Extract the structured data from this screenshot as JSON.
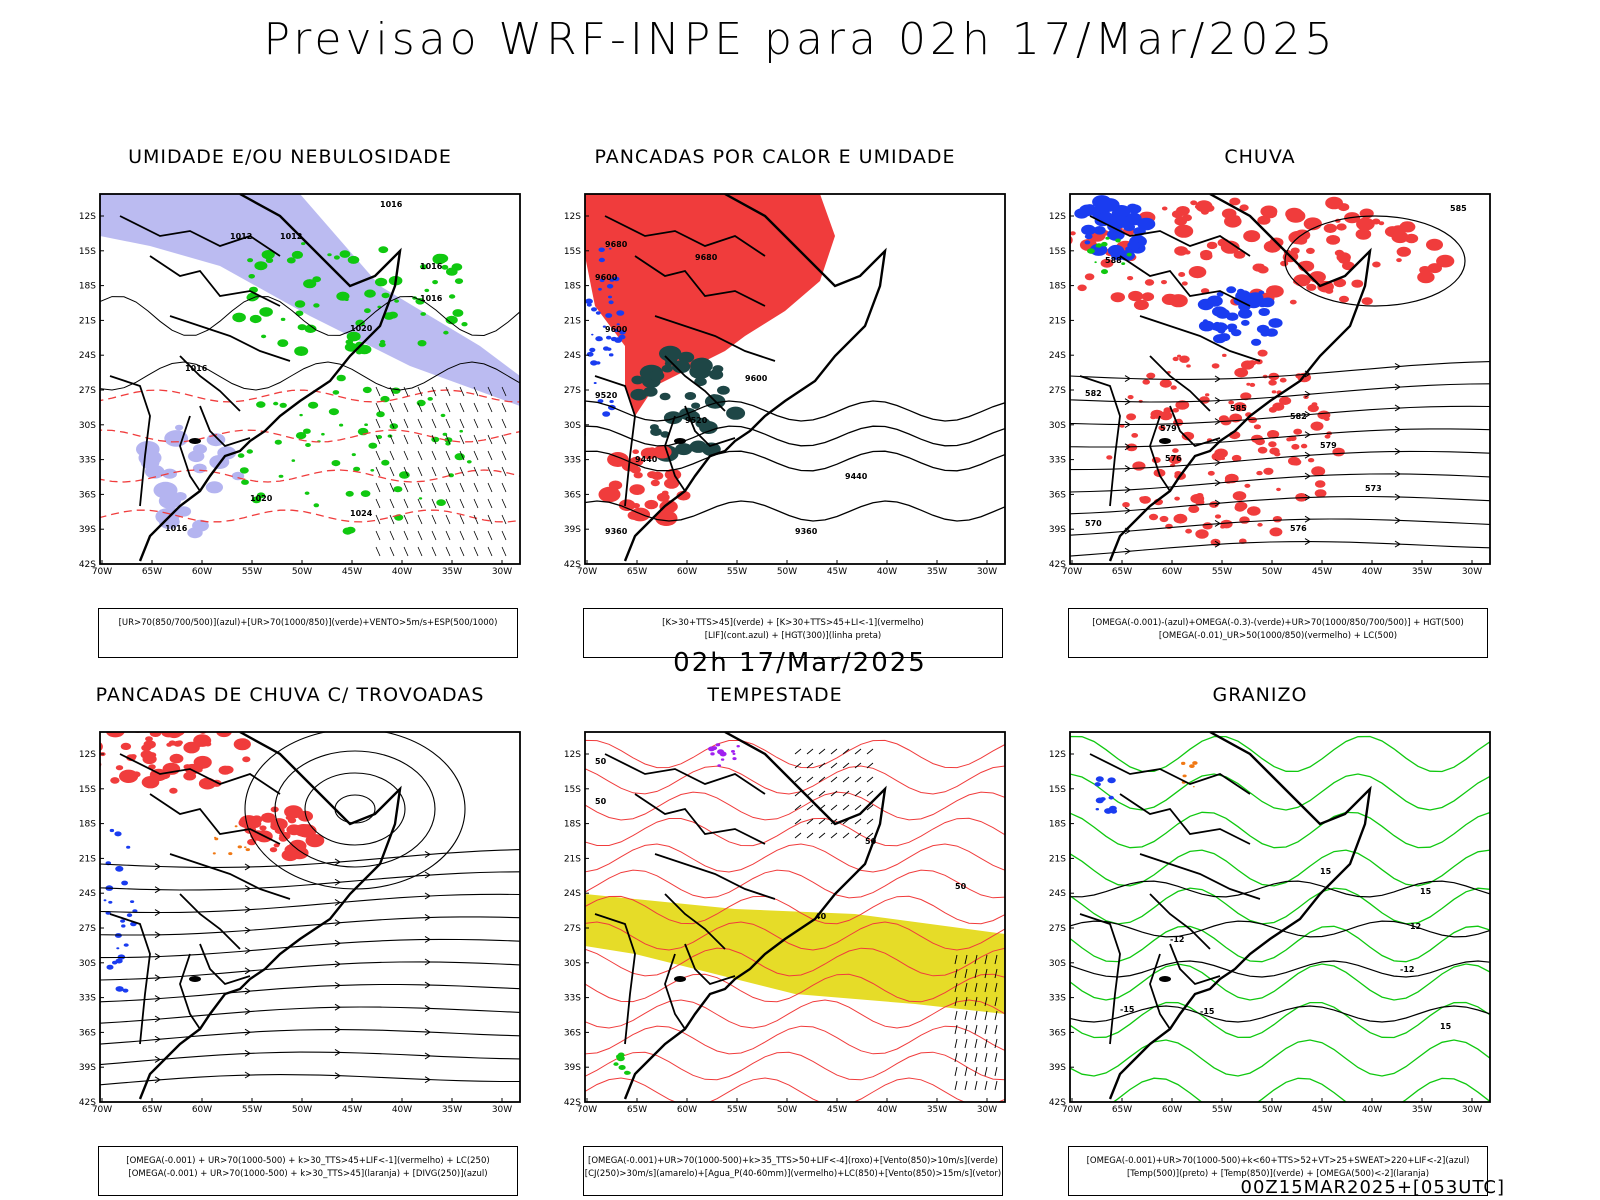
{
  "title": "Previsao WRF-INPE  para 02h 17/Mar/2025",
  "mid_title": "02h 17/Mar/2025",
  "footer": "00Z15MAR2025+[053UTC]",
  "axes": {
    "lat_labels": [
      "12S",
      "15S",
      "18S",
      "21S",
      "24S",
      "27S",
      "30S",
      "33S",
      "36S",
      "39S",
      "42S"
    ],
    "lon_labels": [
      "70W",
      "65W",
      "60W",
      "55W",
      "50W",
      "45W",
      "40W",
      "35W",
      "30W"
    ]
  },
  "colors": {
    "red": "#f03c3c",
    "green": "#10c810",
    "blue": "#1a3cf0",
    "lavender": "#b4b4f0",
    "yellow": "#e6dc28",
    "darkteal": "#1e4646",
    "orange": "#f07814",
    "purple": "#a020f0"
  },
  "panels": [
    {
      "title": "UMIDADE E/OU NEBULOSIDADE",
      "legend": [
        "[UR>70(850/700/500)](azul)+[UR>70(1000/850)](verde)+VENTO>5m/s+ESP(500/1000)"
      ],
      "contour_labels": [
        "1016",
        "1012",
        "1012",
        "1016",
        "1016",
        "1020",
        "1016",
        "1020",
        "1024",
        "1016"
      ]
    },
    {
      "title": "PANCADAS POR CALOR E UMIDADE",
      "legend": [
        "[K>30+TTS>45](verde) + [K>30+TTS>45+LI<-1](vermelho)",
        "[LIF](cont.azul) + [HGT(300)](linha preta)"
      ],
      "contour_labels": [
        "9680",
        "9680",
        "9600",
        "9600",
        "9520",
        "9440",
        "9360",
        "9600",
        "9520",
        "9440",
        "9360"
      ]
    },
    {
      "title": "CHUVA",
      "legend": [
        "[OMEGA(-0.001)-(azul)+OMEGA(-0.3)-(verde)+UR>70(1000/850/700/500)] + HGT(500)",
        "[OMEGA(-0.01)_UR>50(1000/850)(vermelho) + LC(500)"
      ],
      "contour_labels": [
        "585",
        "588",
        "582",
        "579",
        "576",
        "573",
        "570",
        "585",
        "582",
        "579",
        "576"
      ]
    },
    {
      "title": "PANCADAS DE CHUVA C/ TROVOADAS",
      "legend": [
        "[OMEGA(-0.001) + UR>70(1000-500) + k>30_TTS>45+LIF<-1](vermelho) + LC(250)",
        "[OMEGA(-0.001) + UR>70(1000-500) + k>30_TTS>45](laranja) + [DIVG(250)](azul)"
      ],
      "contour_labels": []
    },
    {
      "title": "TEMPESTADE",
      "legend": [
        "[OMEGA(-0.001)+UR>70(1000-500)+k>35_TTS>50+LIF<-4](roxo)+[Vento(850)>10m/s](verde)",
        "[CJ(250)>30m/s](amarelo)+[Agua_P(40-60mm)](vermelho)+LC(850)+[Vento(850)>15m/s](vetor)"
      ],
      "contour_labels": [
        "50",
        "50",
        "50",
        "40",
        "50"
      ]
    },
    {
      "title": "GRANIZO",
      "legend": [
        "[OMEGA(-0.001)+UR>70(1000-500)+k<60+TTS>52+VT>25+SWEAT>220+LIF<-2](azul)",
        "[Temp(500)](preto) + [Temp(850)](verde) + [OMEGA(500)<-2](laranja)"
      ],
      "contour_labels": [
        "-12",
        "-12",
        "-15",
        "-15",
        "15",
        "12",
        "15",
        "15"
      ]
    }
  ]
}
